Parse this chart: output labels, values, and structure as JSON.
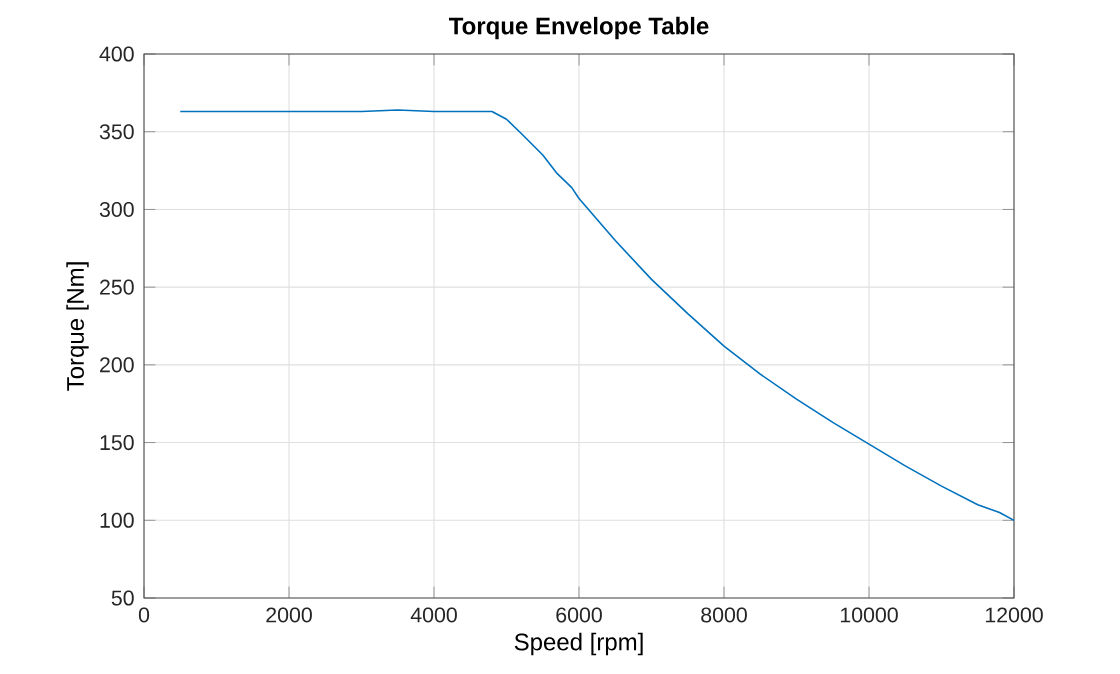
{
  "chart_data": {
    "type": "line",
    "title": "Torque Envelope Table",
    "xlabel": "Speed [rpm]",
    "ylabel": "Torque [Nm]",
    "x": [
      500,
      1000,
      2000,
      3000,
      3500,
      4000,
      4500,
      4800,
      5000,
      5200,
      5500,
      5700,
      5900,
      6000,
      6500,
      7000,
      7500,
      8000,
      8500,
      9000,
      9500,
      10000,
      10500,
      11000,
      11500,
      11800,
      12000
    ],
    "series": [
      {
        "color": "#0072bd",
        "values": [
          363,
          363,
          363,
          363,
          364,
          363,
          363,
          363,
          358,
          349,
          335,
          323,
          314,
          307,
          280,
          255,
          233,
          212,
          194,
          178,
          163,
          149,
          135,
          122,
          110,
          105,
          100
        ]
      }
    ],
    "xlim": [
      0,
      12000
    ],
    "ylim": [
      50,
      400
    ],
    "xticks": [
      0,
      2000,
      4000,
      6000,
      8000,
      10000,
      12000
    ],
    "yticks": [
      50,
      100,
      150,
      200,
      250,
      300,
      350,
      400
    ],
    "grid": true
  }
}
